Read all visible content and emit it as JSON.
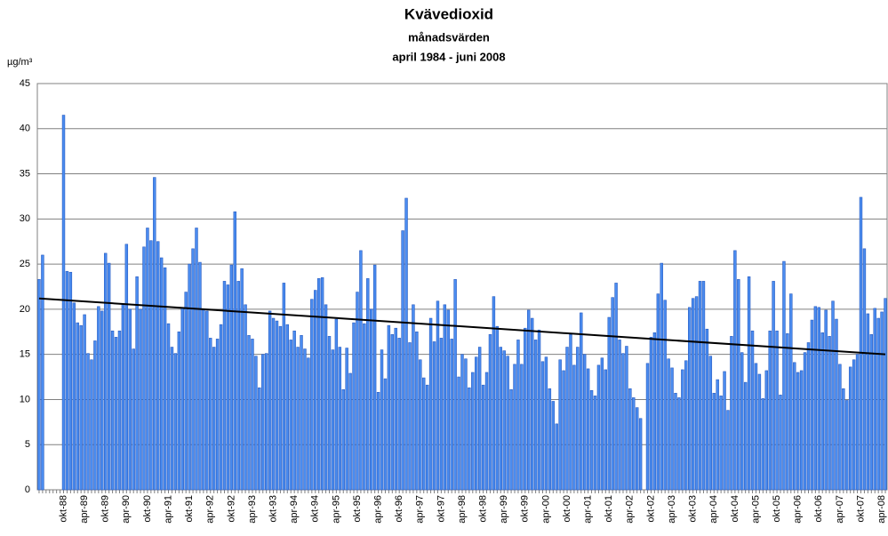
{
  "chart_data": {
    "type": "bar",
    "title": "Kvävedioxid",
    "subtitle": "månadsvärden",
    "period": "april 1984 - juni 2008",
    "y_label": "µg/m³",
    "color": "#4a8cf0",
    "edge_color": "#2a5cc0",
    "grid": true,
    "ylim": [
      0,
      45
    ],
    "yticks": [
      0,
      5,
      10,
      15,
      20,
      25,
      30,
      35,
      40,
      45
    ],
    "categories": [
      null,
      null,
      null,
      null,
      null,
      null,
      null,
      "okt-88",
      null,
      null,
      null,
      null,
      null,
      "apr-89",
      null,
      null,
      null,
      null,
      null,
      "okt-89",
      null,
      null,
      null,
      null,
      null,
      "apr-90",
      null,
      null,
      null,
      null,
      null,
      "okt-90",
      null,
      null,
      null,
      null,
      null,
      "apr-91",
      null,
      null,
      null,
      null,
      null,
      "okt-91",
      null,
      null,
      null,
      null,
      null,
      "apr-92",
      null,
      null,
      null,
      null,
      null,
      "okt-92",
      null,
      null,
      null,
      null,
      null,
      "apr-93",
      null,
      null,
      null,
      null,
      null,
      "okt-93",
      null,
      null,
      null,
      null,
      null,
      "apr-94",
      null,
      null,
      null,
      null,
      null,
      "okt-94",
      null,
      null,
      null,
      null,
      null,
      "apr-95",
      null,
      null,
      null,
      null,
      null,
      "okt-95",
      null,
      null,
      null,
      null,
      null,
      "apr-96",
      null,
      null,
      null,
      null,
      null,
      "okt-96",
      null,
      null,
      null,
      null,
      null,
      "apr-97",
      null,
      null,
      null,
      null,
      null,
      "okt-97",
      null,
      null,
      null,
      null,
      null,
      "apr-98",
      null,
      null,
      null,
      null,
      null,
      "okt-98",
      null,
      null,
      null,
      null,
      null,
      "apr-99",
      null,
      null,
      null,
      null,
      null,
      "okt-99",
      null,
      null,
      null,
      null,
      null,
      "apr-00",
      null,
      null,
      null,
      null,
      null,
      "okt-00",
      null,
      null,
      null,
      null,
      null,
      "apr-01",
      null,
      null,
      null,
      null,
      null,
      "okt-01",
      null,
      null,
      null,
      null,
      null,
      "apr-02",
      null,
      null,
      null,
      null,
      null,
      "okt-02",
      null,
      null,
      null,
      null,
      null,
      "apr-03",
      null,
      null,
      null,
      null,
      null,
      "okt-03",
      null,
      null,
      null,
      null,
      null,
      "apr-04",
      null,
      null,
      null,
      null,
      null,
      "okt-04",
      null,
      null,
      null,
      null,
      null,
      "apr-05",
      null,
      null,
      null,
      null,
      null,
      "okt-05",
      null,
      null,
      null,
      null,
      null,
      "apr-06",
      null,
      null,
      null,
      null,
      null,
      "okt-06",
      null,
      null,
      null,
      null,
      null,
      "apr-07",
      null,
      null,
      null,
      null,
      null,
      "okt-07",
      null,
      null,
      null,
      null,
      null,
      "apr-08",
      null
    ],
    "values": [
      23.3,
      26,
      null,
      null,
      null,
      null,
      null,
      41.5,
      24.2,
      24.1,
      20.7,
      18.5,
      18.2,
      19.4,
      15.1,
      14.4,
      16.5,
      20.3,
      19.8,
      26.2,
      25.1,
      17.6,
      16.9,
      17.6,
      20.6,
      27.2,
      20.0,
      15.6,
      23.6,
      20.0,
      26.9,
      29.0,
      27.6,
      34.6,
      27.5,
      25.7,
      24.6,
      18.4,
      15.8,
      15.1,
      17.5,
      20.1,
      21.9,
      25.0,
      26.7,
      29.0,
      25.2,
      19.9,
      19.8,
      16.8,
      15.8,
      16.7,
      18.3,
      23.1,
      22.7,
      24.9,
      30.8,
      23.1,
      24.5,
      20.5,
      17.1,
      16.7,
      14.8,
      11.3,
      15.0,
      15.1,
      19.8,
      19.0,
      18.7,
      18.1,
      22.9,
      18.3,
      16.6,
      17.6,
      15.8,
      17.1,
      15.6,
      14.6,
      21.1,
      22.1,
      23.4,
      23.5,
      20.5,
      17.0,
      15.5,
      18.9,
      15.8,
      11.1,
      15.7,
      12.9,
      18.5,
      21.9,
      26.5,
      18.4,
      23.4,
      20.0,
      24.9,
      10.8,
      15.5,
      12.3,
      18.2,
      17.2,
      17.9,
      16.8,
      28.7,
      32.3,
      16.3,
      20.5,
      17.5,
      14.4,
      12.4,
      11.6,
      19.0,
      16.4,
      20.9,
      16.8,
      20.5,
      19.9,
      16.7,
      23.3,
      12.5,
      15.0,
      14.5,
      11.3,
      13.0,
      14.7,
      15.8,
      11.6,
      13.0,
      17.2,
      21.4,
      18.1,
      15.8,
      15.4,
      14.8,
      11.1,
      13.9,
      16.6,
      13.9,
      17.9,
      19.9,
      19.0,
      16.6,
      17.7,
      14.2,
      14.7,
      11.2,
      9.8,
      7.3,
      14.4,
      13.2,
      15.8,
      17.2,
      13.8,
      15.8,
      19.6,
      15.0,
      13.4,
      11.0,
      10.4,
      13.8,
      14.6,
      13.3,
      19.1,
      21.3,
      22.9,
      16.6,
      15.1,
      15.9,
      11.2,
      10.2,
      9.1,
      7.9,
      null,
      14.0,
      16.9,
      17.4,
      21.7,
      25.1,
      21.0,
      14.5,
      13.5,
      10.7,
      10.2,
      13.3,
      14.3,
      20.2,
      21.2,
      21.4,
      23.1,
      23.1,
      17.8,
      14.8,
      10.7,
      12.2,
      10.4,
      13.1,
      8.8,
      17.0,
      26.5,
      23.3,
      15.2,
      11.9,
      23.6,
      17.6,
      14.0,
      12.8,
      10.1,
      13.2,
      17.6,
      23.1,
      17.6,
      10.5,
      25.3,
      17.3,
      21.7,
      14.1,
      13.0,
      13.2,
      15.2,
      16.3,
      18.8,
      20.3,
      20.2,
      17.4,
      19.9,
      17.0,
      20.9,
      18.9,
      13.9,
      11.2,
      9.9,
      13.6,
      14.4,
      15.0,
      32.4,
      26.7,
      19.5,
      17.2,
      20.1,
      19.0,
      19.7,
      21.2
    ],
    "trendline": {
      "color": "#000000",
      "values": [
        21.2,
        15.0
      ]
    }
  }
}
